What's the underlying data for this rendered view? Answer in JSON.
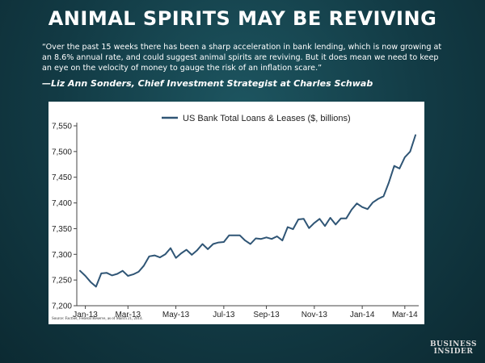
{
  "headline": "ANIMAL SPIRITS MAY BE REVIVING",
  "quote": "“Over the past 15 weeks there has been a sharp acceleration in bank lending, which is now growing at an 8.6% annual rate, and could suggest animal spirits are reviving. But it does mean we need to keep an eye on the velocity of money to gauge the risk of an inflation scare.”",
  "attribution": "—Liz Ann Sonders, Chief Investment Strategist at Charles Schwab",
  "brand": {
    "line1": "BUSINESS",
    "line2": "INSIDER"
  },
  "colors": {
    "series": "#2f5575",
    "axis": "#444444",
    "background_dark": "#123a44"
  },
  "chart_data": {
    "type": "line",
    "title": "",
    "xlabel": "",
    "ylabel": "",
    "legend": "top-center",
    "grid": false,
    "source": "Source: FactSet, Federal Reserve, as of March 21, 2014.",
    "ylim": [
      7200,
      7550
    ],
    "yticks": [
      7200,
      7250,
      7300,
      7350,
      7400,
      7450,
      7500,
      7550
    ],
    "ytick_labels": [
      "7,200",
      "7,250",
      "7,300",
      "7,350",
      "7,400",
      "7,450",
      "7,500",
      "7,550"
    ],
    "xticks": [
      {
        "label": "Jan-13",
        "index": 1
      },
      {
        "label": "Mar-13",
        "index": 9
      },
      {
        "label": "May-13",
        "index": 18
      },
      {
        "label": "Jul-13",
        "index": 27
      },
      {
        "label": "Sep-13",
        "index": 35
      },
      {
        "label": "Nov-13",
        "index": 44
      },
      {
        "label": "Jan-14",
        "index": 53
      },
      {
        "label": "Mar-14",
        "index": 61
      }
    ],
    "series": [
      {
        "name": "US Bank Total Loans & Leases ($, billions)",
        "values": [
          7268,
          7258,
          7246,
          7237,
          7263,
          7264,
          7259,
          7262,
          7268,
          7258,
          7261,
          7266,
          7278,
          7296,
          7298,
          7294,
          7300,
          7312,
          7293,
          7302,
          7309,
          7299,
          7308,
          7320,
          7310,
          7320,
          7323,
          7324,
          7337,
          7337,
          7337,
          7327,
          7320,
          7331,
          7330,
          7333,
          7330,
          7335,
          7327,
          7353,
          7349,
          7368,
          7369,
          7351,
          7361,
          7369,
          7355,
          7371,
          7358,
          7370,
          7370,
          7387,
          7399,
          7392,
          7388,
          7401,
          7408,
          7413,
          7440,
          7472,
          7467,
          7489,
          7500,
          7532
        ]
      }
    ]
  }
}
